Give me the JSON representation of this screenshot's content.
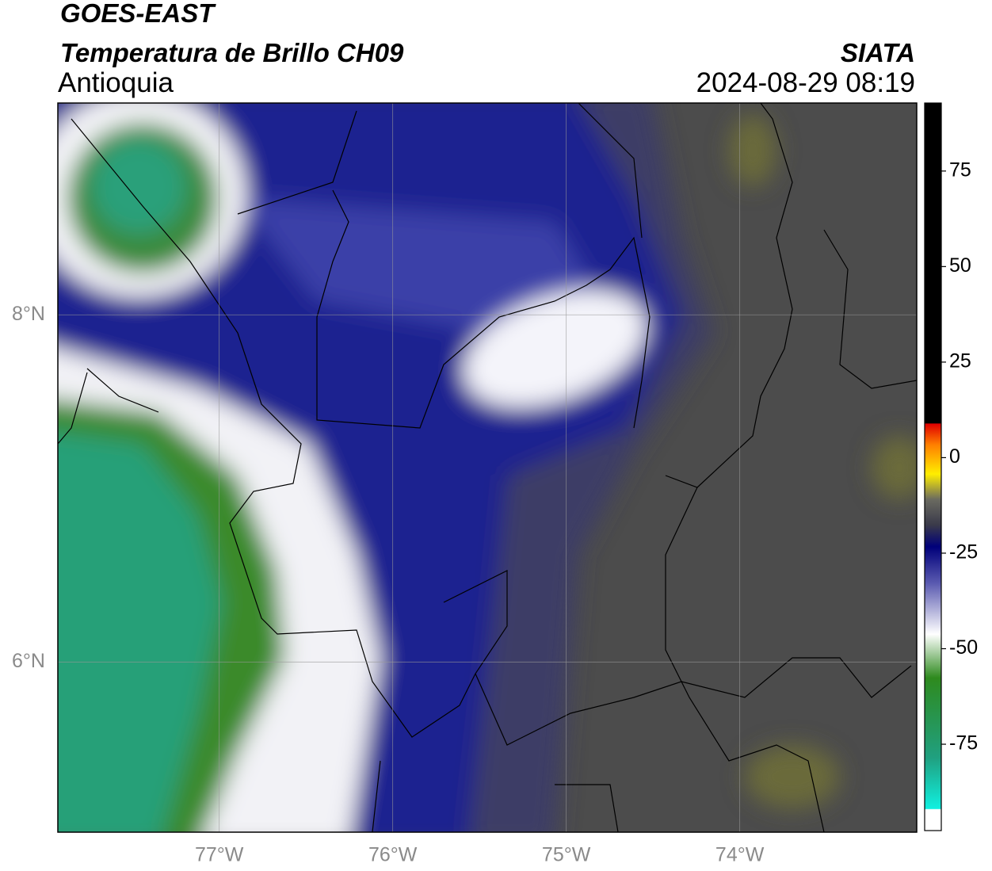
{
  "header": {
    "title": "GOES-EAST",
    "subtitle": "Temperatura de Brillo CH09",
    "region": "Antioquia",
    "source": "SIATA",
    "timestamp": "2024-08-29 08:19"
  },
  "map": {
    "lon_range": [
      -77.93,
      -72.98
    ],
    "lat_range": [
      5.02,
      9.22
    ],
    "lat_ticks": [
      {
        "value": 8,
        "label": "8°N"
      },
      {
        "value": 6,
        "label": "6°N"
      }
    ],
    "lon_ticks": [
      {
        "value": -77,
        "label": "77°W"
      },
      {
        "value": -76,
        "label": "76°W"
      },
      {
        "value": -75,
        "label": "75°W"
      },
      {
        "value": -74,
        "label": "74°W"
      }
    ]
  },
  "colorbar": {
    "range": [
      -97.6,
      92.8
    ],
    "ticks": [
      75,
      50,
      25,
      0,
      -25,
      -50,
      -75
    ]
  }
}
